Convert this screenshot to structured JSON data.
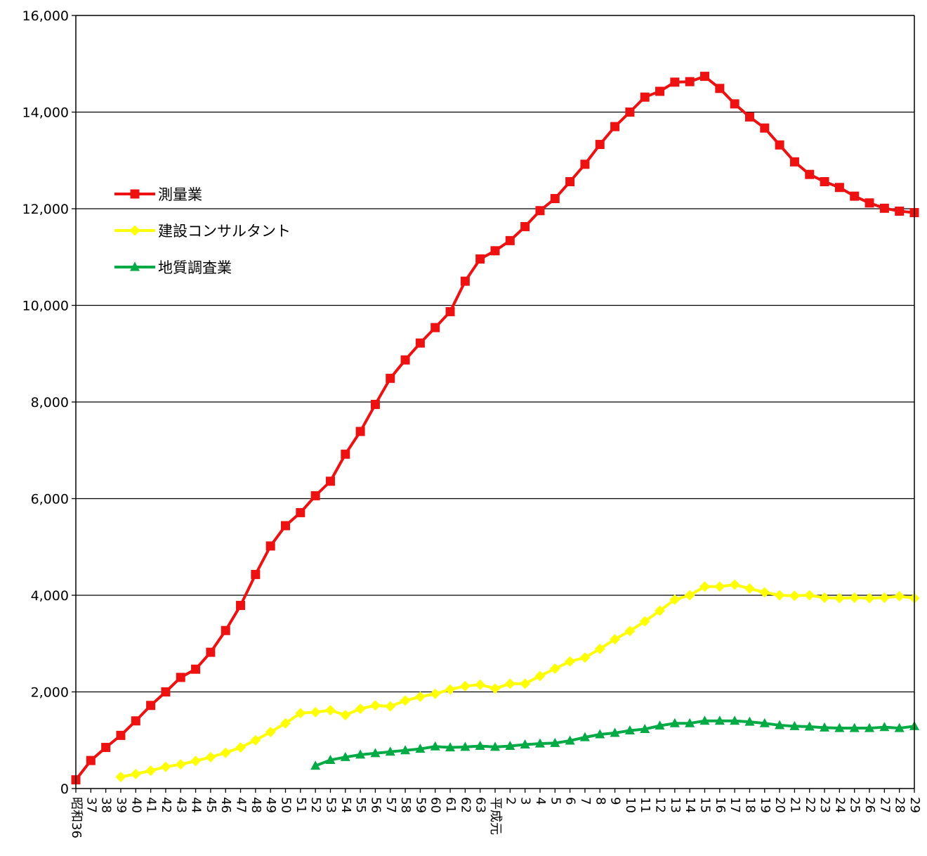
{
  "chart_data": {
    "type": "line",
    "title": "",
    "xlabel": "",
    "ylabel": "",
    "ylim": [
      0,
      16000
    ],
    "yticks": [
      "0",
      "2,000",
      "4,000",
      "6,000",
      "8,000",
      "10,000",
      "12,000",
      "14,000",
      "16,000"
    ],
    "grid": true,
    "legend_position": "upper-left",
    "categories": [
      "昭和36",
      "37",
      "38",
      "39",
      "40",
      "41",
      "42",
      "43",
      "44",
      "45",
      "46",
      "47",
      "48",
      "49",
      "50",
      "51",
      "52",
      "53",
      "54",
      "55",
      "56",
      "57",
      "58",
      "59",
      "60",
      "61",
      "62",
      "63",
      "平成元",
      "2",
      "3",
      "4",
      "5",
      "6",
      "7",
      "8",
      "9",
      "10",
      "11",
      "12",
      "13",
      "14",
      "15",
      "16",
      "17",
      "18",
      "19",
      "20",
      "21",
      "22",
      "23",
      "24",
      "25",
      "26",
      "27",
      "28",
      "29"
    ],
    "series": [
      {
        "name": "測量業",
        "color": "#ee1111",
        "marker": "square",
        "values": [
          180,
          580,
          850,
          1100,
          1400,
          1720,
          2000,
          2300,
          2470,
          2820,
          3270,
          3790,
          4430,
          5020,
          5440,
          5710,
          6060,
          6360,
          6920,
          7390,
          7950,
          8490,
          8870,
          9220,
          9540,
          9870,
          10500,
          10960,
          11130,
          11340,
          11630,
          11960,
          12210,
          12560,
          12920,
          13330,
          13700,
          14000,
          14310,
          14430,
          14620,
          14630,
          14740,
          14490,
          14170,
          13900,
          13670,
          13320,
          12970,
          12710,
          12560,
          12440,
          12260,
          12120,
          12010,
          11950,
          11920
        ]
      },
      {
        "name": "建設コンサルタント",
        "color": "#ffff00",
        "marker": "diamond",
        "values": [
          null,
          null,
          null,
          240,
          300,
          370,
          450,
          500,
          570,
          650,
          740,
          850,
          1000,
          1170,
          1350,
          1560,
          1580,
          1620,
          1520,
          1650,
          1720,
          1700,
          1820,
          1900,
          1960,
          2050,
          2120,
          2150,
          2070,
          2170,
          2170,
          2330,
          2480,
          2630,
          2710,
          2890,
          3090,
          3260,
          3460,
          3680,
          3910,
          4000,
          4180,
          4180,
          4220,
          4140,
          4060,
          4000,
          3990,
          4000,
          3950,
          3940,
          3950,
          3940,
          3950,
          3980,
          3940
        ]
      },
      {
        "name": "地質調査業",
        "color": "#00aa44",
        "marker": "triangle",
        "values": [
          null,
          null,
          null,
          null,
          null,
          null,
          null,
          null,
          null,
          null,
          null,
          null,
          null,
          null,
          null,
          null,
          470,
          590,
          650,
          700,
          730,
          760,
          790,
          820,
          870,
          850,
          860,
          880,
          860,
          880,
          910,
          930,
          940,
          990,
          1060,
          1120,
          1150,
          1200,
          1230,
          1300,
          1350,
          1350,
          1400,
          1400,
          1400,
          1380,
          1350,
          1310,
          1290,
          1280,
          1260,
          1250,
          1250,
          1250,
          1270,
          1250,
          1290
        ]
      }
    ]
  }
}
